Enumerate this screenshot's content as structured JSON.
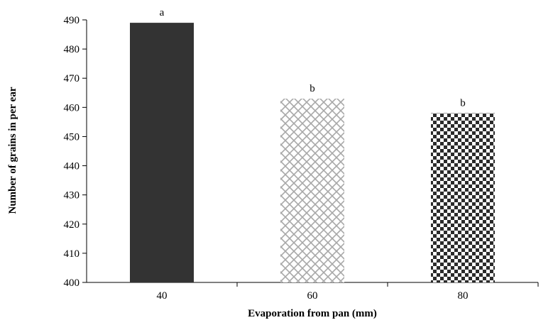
{
  "chart_data": {
    "type": "bar",
    "categories": [
      "40",
      "60",
      "80"
    ],
    "values": [
      489,
      463,
      458
    ],
    "significance_letters": [
      "a",
      "b",
      "b"
    ],
    "title": "",
    "xlabel": "Evaporation from pan (mm)",
    "ylabel": "Number of grains in per ear",
    "ylim": [
      400,
      490
    ],
    "yticks": [
      400,
      410,
      420,
      430,
      440,
      450,
      460,
      470,
      480,
      490
    ],
    "grid": false,
    "legend": "none",
    "bar_styles": [
      {
        "fill": "solid",
        "color": "#333333"
      },
      {
        "fill": "diagonal-crosshatch",
        "color": "#a8a8a8"
      },
      {
        "fill": "checkerboard",
        "color": "#2b2b2b"
      }
    ]
  }
}
